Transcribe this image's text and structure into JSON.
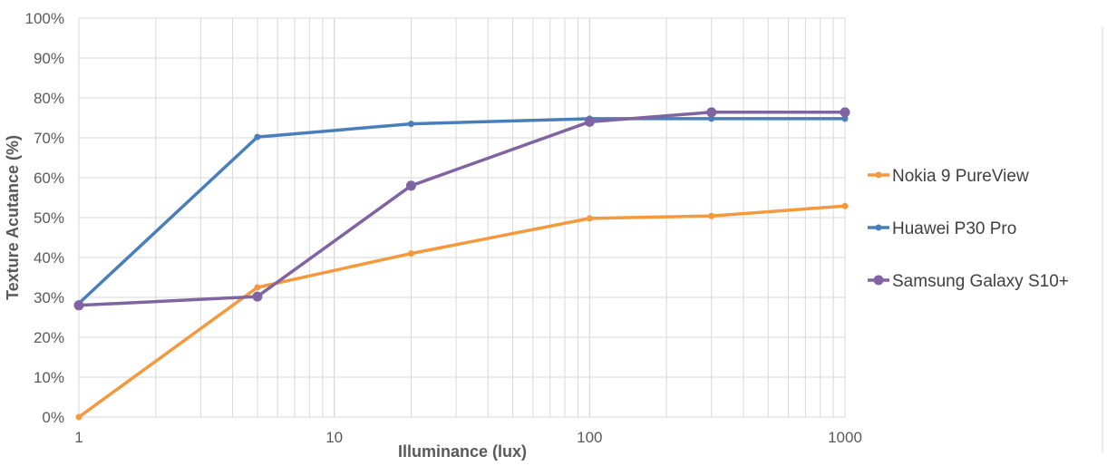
{
  "chart_data": {
    "type": "line",
    "xscale": "log",
    "x": [
      1,
      5,
      20,
      100,
      300,
      1000
    ],
    "xlim": [
      1,
      1000
    ],
    "ylim": [
      0,
      100
    ],
    "xticks": [
      "1",
      "10",
      "100",
      "1000"
    ],
    "yticks": [
      "0%",
      "10%",
      "20%",
      "30%",
      "40%",
      "50%",
      "60%",
      "70%",
      "80%",
      "90%",
      "100%"
    ],
    "xlabel": "Illuminance (lux)",
    "ylabel": "Texture Acutance (%)",
    "grid": true,
    "legend": "right",
    "series": [
      {
        "name": "Nokia 9 PureView",
        "color": "#f4993d",
        "marker": "small",
        "values": [
          0,
          32.5,
          41,
          49.8,
          50.4,
          52.9
        ]
      },
      {
        "name": "Huawei P30 Pro",
        "color": "#4a7ebb",
        "marker": "small",
        "values": [
          28.5,
          70.2,
          73.5,
          74.8,
          74.8,
          74.8
        ]
      },
      {
        "name": "Samsung Galaxy S10+",
        "color": "#8064a2",
        "marker": "large",
        "values": [
          28,
          30.2,
          58,
          74,
          76.4,
          76.4
        ]
      }
    ]
  }
}
